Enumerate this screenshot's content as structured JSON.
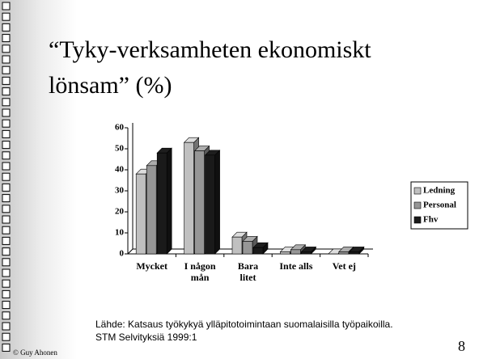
{
  "slide_title": "“Tyky-verksamheten ekonomiskt\nlönsam” (%)",
  "chart_data": {
    "type": "bar3d",
    "categories": [
      "Mycket",
      "I någon\nmån",
      "Bara\nlitet",
      "Inte alls",
      "Vet ej"
    ],
    "series": [
      {
        "name": "Ledning",
        "color": "#c0c0c0",
        "values": [
          38,
          53,
          8,
          1,
          0
        ]
      },
      {
        "name": "Personal",
        "color": "#969696",
        "values": [
          42,
          49,
          6,
          2,
          1
        ]
      },
      {
        "name": "Fhv",
        "color": "#1a1a1a",
        "values": [
          48,
          47,
          3,
          1,
          1
        ]
      }
    ],
    "ylim": [
      0,
      60
    ],
    "yticks": [
      0,
      10,
      20,
      30,
      40,
      50,
      60
    ],
    "legend": "right"
  },
  "source": "Lähde: Katsaus työkykyä ylläpitotoimintaan suomalaisilla työpaikoilla.\nSTM Selvityksiä 1999:1",
  "footer": "© Guy Ahonen",
  "page_number": "8"
}
